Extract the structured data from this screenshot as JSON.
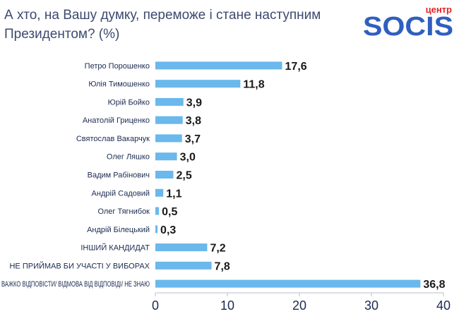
{
  "header": {
    "title_line1": "А хто, на Вашу думку, переможе і стане наступним",
    "title_line2": "Президентом? (%)"
  },
  "logo": {
    "brand": "SOCIS",
    "sub": "центр",
    "brand_color": "#2f5fbf",
    "sub_color": "#e02424"
  },
  "chart_data": {
    "type": "bar",
    "orientation": "horizontal",
    "categories": [
      "Петро Порошенко",
      "Юлія Тимошенко",
      "Юрій Бойко",
      "Анатолій Гриценко",
      "Святослав Вакарчук",
      "Олег Ляшко",
      "Вадим Рабінович",
      "Андрій Садовий",
      "Олег Тягнибок",
      "Андрій Білецький",
      "ІНШИЙ КАНДИДАТ",
      "НЕ ПРИЙМАВ БИ УЧАСТІ У ВИБОРАХ",
      "ВАЖКО ВІДПОВІСТИ/ ВІДМОВА ВІД ВІДПОВІДІ/ НЕ ЗНАЮ"
    ],
    "values": [
      17.6,
      11.8,
      3.9,
      3.8,
      3.7,
      3.0,
      2.5,
      1.1,
      0.5,
      0.3,
      7.2,
      7.8,
      36.8
    ],
    "value_labels": [
      "17,6",
      "11,8",
      "3,9",
      "3,8",
      "3,7",
      "3,0",
      "2,5",
      "1,1",
      "0,5",
      "0,3",
      "7,2",
      "7,8",
      "36,8"
    ],
    "xlim": [
      0,
      40
    ],
    "xticks": [
      0,
      10,
      20,
      30,
      40
    ],
    "bar_color": "#6ab8ec",
    "grid": false
  }
}
